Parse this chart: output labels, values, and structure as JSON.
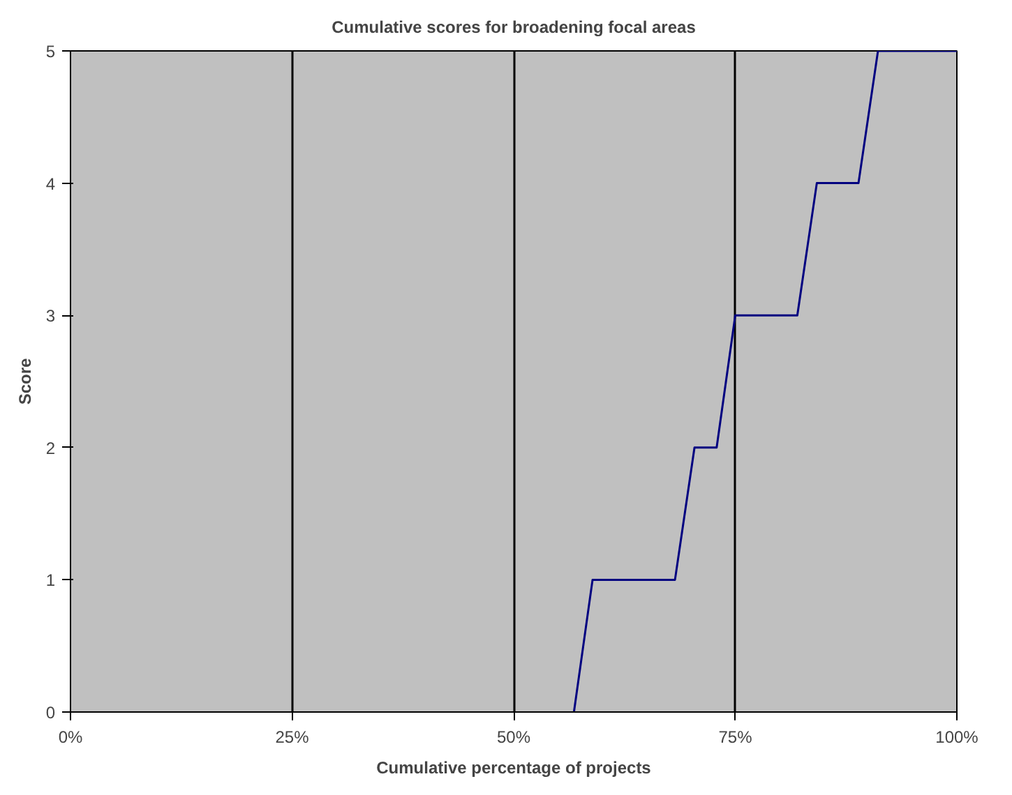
{
  "chart_data": {
    "type": "line",
    "title": "Cumulative scores for broadening focal areas",
    "xlabel": "Cumulative percentage of projects",
    "ylabel": "Score",
    "x": [
      56.8,
      58.9,
      68.2,
      70.4,
      72.9,
      75.0,
      82.0,
      84.2,
      88.9,
      91.1,
      100
    ],
    "series": [
      {
        "color": "#000080",
        "values": [
          0,
          1,
          1,
          2,
          2,
          3,
          3,
          4,
          4,
          5,
          5
        ]
      }
    ],
    "xlim": [
      0,
      100
    ],
    "xticks": [
      {
        "value": 0,
        "label": "0%"
      },
      {
        "value": 25,
        "label": "25%"
      },
      {
        "value": 50,
        "label": "50%"
      },
      {
        "value": 75,
        "label": "75%"
      },
      {
        "value": 100,
        "label": "100%"
      }
    ],
    "ylim": [
      0,
      5
    ],
    "yticks": [
      0,
      1,
      2,
      3,
      4,
      5
    ],
    "grid": "x",
    "marker": "none",
    "line_style": "solid"
  }
}
